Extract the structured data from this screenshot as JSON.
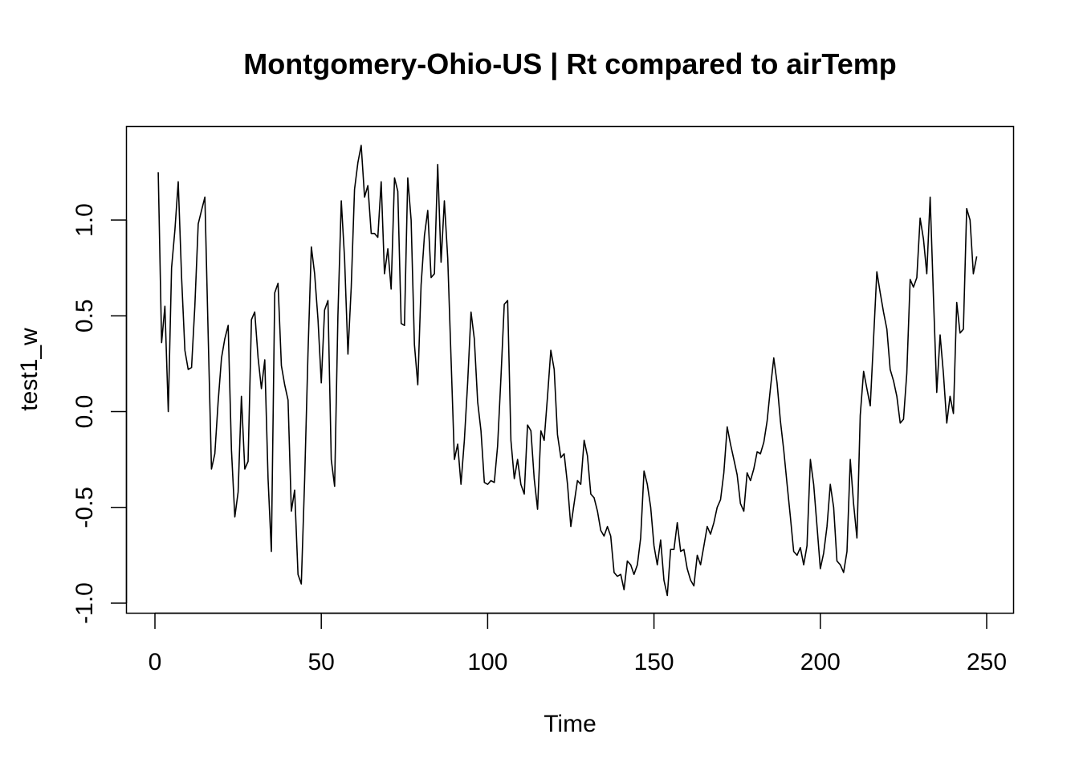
{
  "chart_data": {
    "type": "line",
    "title": "Montgomery-Ohio-US | Rt compared to airTemp",
    "xlabel": "Time",
    "ylabel": "test1_w",
    "xlim": [
      1,
      248
    ],
    "ylim": [
      -0.95,
      1.4
    ],
    "x_ticks": [
      0,
      50,
      100,
      150,
      200,
      250
    ],
    "x_tick_labels": [
      "0",
      "50",
      "100",
      "150",
      "200",
      "250"
    ],
    "y_ticks": [
      -1.0,
      -0.5,
      0.0,
      0.5,
      1.0
    ],
    "y_tick_labels": [
      "-1.0",
      "-0.5",
      "0.0",
      "0.5",
      "1.0"
    ],
    "line_color": "#000000",
    "grid": false,
    "series": [
      {
        "x_start": 1,
        "values": [
          1.25,
          0.36,
          0.55,
          0.0,
          0.75,
          0.95,
          1.2,
          0.7,
          0.32,
          0.22,
          0.23,
          0.55,
          0.98,
          1.05,
          1.12,
          0.4,
          -0.3,
          -0.22,
          0.05,
          0.28,
          0.38,
          0.45,
          -0.2,
          -0.55,
          -0.42,
          0.08,
          -0.3,
          -0.26,
          0.48,
          0.52,
          0.28,
          0.12,
          0.27,
          -0.35,
          -0.73,
          0.62,
          0.67,
          0.24,
          0.14,
          0.06,
          -0.52,
          -0.41,
          -0.85,
          -0.9,
          -0.35,
          0.3,
          0.86,
          0.72,
          0.48,
          0.15,
          0.53,
          0.58,
          -0.25,
          -0.39,
          0.5,
          1.1,
          0.8,
          0.3,
          0.65,
          1.16,
          1.3,
          1.39,
          1.12,
          1.18,
          0.93,
          0.93,
          0.91,
          1.2,
          0.72,
          0.85,
          0.64,
          1.22,
          1.15,
          0.46,
          0.45,
          1.22,
          1.0,
          0.35,
          0.14,
          0.66,
          0.92,
          1.05,
          0.7,
          0.72,
          1.29,
          0.78,
          1.1,
          0.8,
          0.28,
          -0.25,
          -0.17,
          -0.38,
          -0.15,
          0.15,
          0.52,
          0.38,
          0.05,
          -0.1,
          -0.37,
          -0.38,
          -0.36,
          -0.37,
          -0.18,
          0.18,
          0.56,
          0.58,
          -0.15,
          -0.35,
          -0.25,
          -0.38,
          -0.43,
          -0.07,
          -0.1,
          -0.35,
          -0.51,
          -0.1,
          -0.15,
          0.08,
          0.32,
          0.22,
          -0.12,
          -0.24,
          -0.22,
          -0.38,
          -0.6,
          -0.48,
          -0.36,
          -0.38,
          -0.15,
          -0.23,
          -0.43,
          -0.45,
          -0.52,
          -0.62,
          -0.65,
          -0.6,
          -0.65,
          -0.84,
          -0.86,
          -0.85,
          -0.93,
          -0.78,
          -0.8,
          -0.85,
          -0.8,
          -0.66,
          -0.31,
          -0.38,
          -0.5,
          -0.7,
          -0.8,
          -0.67,
          -0.88,
          -0.96,
          -0.72,
          -0.72,
          -0.58,
          -0.73,
          -0.72,
          -0.82,
          -0.88,
          -0.91,
          -0.75,
          -0.8,
          -0.7,
          -0.6,
          -0.64,
          -0.58,
          -0.5,
          -0.46,
          -0.32,
          -0.08,
          -0.17,
          -0.25,
          -0.33,
          -0.48,
          -0.52,
          -0.32,
          -0.36,
          -0.3,
          -0.21,
          -0.22,
          -0.16,
          -0.05,
          0.12,
          0.28,
          0.15,
          -0.05,
          -0.2,
          -0.38,
          -0.55,
          -0.73,
          -0.75,
          -0.71,
          -0.8,
          -0.7,
          -0.25,
          -0.38,
          -0.6,
          -0.82,
          -0.74,
          -0.6,
          -0.38,
          -0.5,
          -0.78,
          -0.8,
          -0.84,
          -0.73,
          -0.25,
          -0.48,
          -0.66,
          -0.02,
          0.21,
          0.12,
          0.03,
          0.38,
          0.73,
          0.62,
          0.52,
          0.43,
          0.22,
          0.16,
          0.08,
          -0.06,
          -0.04,
          0.2,
          0.69,
          0.65,
          0.7,
          1.01,
          0.9,
          0.72,
          1.12,
          0.6,
          0.1,
          0.4,
          0.2,
          -0.06,
          0.08,
          -0.01,
          0.57,
          0.41,
          0.43,
          1.06,
          1.0,
          0.72,
          0.81
        ]
      }
    ]
  }
}
